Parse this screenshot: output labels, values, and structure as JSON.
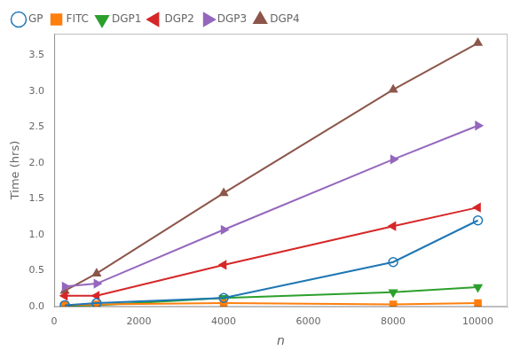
{
  "chart_data": {
    "type": "line",
    "x": [
      250,
      1000,
      4000,
      8000,
      10000
    ],
    "series": [
      {
        "name": "GP",
        "color": "#1f77b4",
        "marker": "open_circle",
        "values": [
          0.02,
          0.05,
          0.12,
          0.62,
          1.2
        ]
      },
      {
        "name": "FITC",
        "color": "#ff7f0e",
        "marker": "square",
        "values": [
          0.02,
          0.03,
          0.05,
          0.03,
          0.05
        ]
      },
      {
        "name": "DGP1",
        "color": "#2ca02c",
        "marker": "triangle_down",
        "values": [
          0.01,
          0.02,
          0.12,
          0.2,
          0.27
        ]
      },
      {
        "name": "DGP2",
        "color": "#d62728",
        "marker": "triangle_left",
        "values": [
          0.15,
          0.15,
          0.58,
          1.12,
          1.38
        ]
      },
      {
        "name": "DGP3",
        "color": "#9467bd",
        "marker": "triangle_right",
        "values": [
          0.28,
          0.32,
          1.07,
          2.05,
          2.52
        ]
      },
      {
        "name": "DGP4",
        "color": "#8c564b",
        "marker": "triangle_up",
        "values": [
          0.22,
          0.46,
          1.58,
          3.02,
          3.67
        ]
      }
    ],
    "xlabel": "n",
    "ylabel": "Time (hrs)",
    "xlim": [
      0,
      10700
    ],
    "xticks": [
      0,
      2000,
      4000,
      6000,
      8000,
      10000
    ],
    "ylim": [
      0,
      3.8
    ],
    "yticks": [
      {
        "value": 0.0,
        "label": "0.0"
      },
      0.5,
      {
        "value": 1.0,
        "label": "1.0"
      },
      1.5,
      {
        "value": 2.0,
        "label": "2.0"
      },
      2.5,
      {
        "value": 3.0,
        "label": "3.0"
      },
      3.5
    ],
    "grid": false,
    "legend": "upper left"
  }
}
